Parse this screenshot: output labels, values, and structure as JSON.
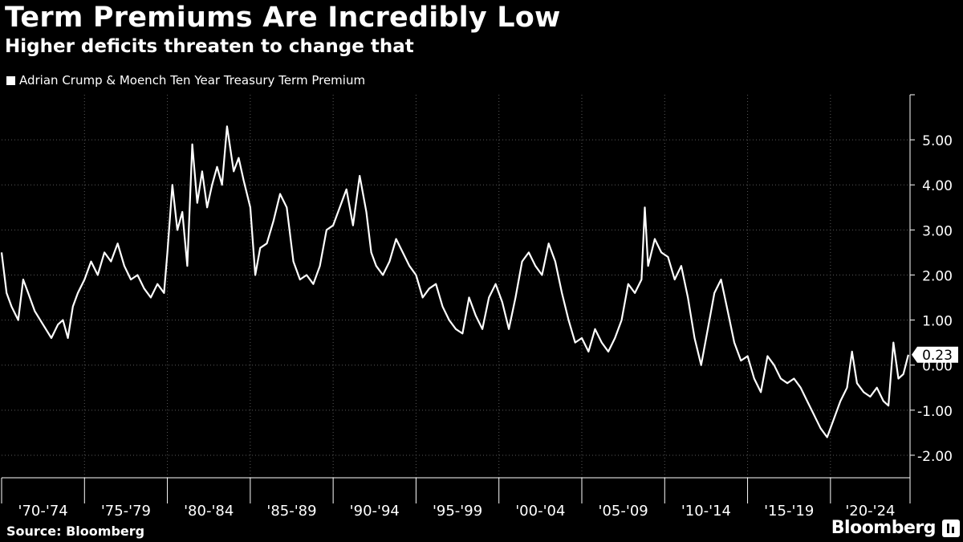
{
  "header": {
    "title": "Term Premiums Are Incredibly Low",
    "subtitle": "Higher deficits threaten to change that"
  },
  "footer": {
    "source": "Source: Bloomberg",
    "brand": "Bloomberg"
  },
  "colors": {
    "background": "#000000",
    "line": "#ffffff",
    "grid": "#5a5a5a"
  },
  "chart_data": {
    "type": "line",
    "title": "Term Premiums Are Incredibly Low",
    "subtitle": "Higher deficits threaten to change that",
    "legend": [
      "Adrian Crump & Moench Ten Year Treasury Term Premium"
    ],
    "legend_position": "top-left",
    "xlabel": "",
    "ylabel": "",
    "xlim": [
      1970,
      2024.8
    ],
    "ylim": [
      -2.5,
      6.0
    ],
    "y_ticks": [
      5.0,
      4.0,
      3.0,
      2.0,
      1.0,
      0.0,
      -1.0,
      -2.0
    ],
    "y_tick_labels": [
      "5.00",
      "4.00",
      "3.00",
      "2.00",
      "1.00",
      "0.00",
      "-1.00",
      "-2.00"
    ],
    "x_tick_labels": [
      "'70-'74",
      "'75-'79",
      "'80-'84",
      "'85-'89",
      "'90-'94",
      "'95-'99",
      "'00-'04",
      "'05-'09",
      "'10-'14",
      "'15-'19",
      "'20-'24"
    ],
    "x_grid_years": [
      1975,
      1980,
      1985,
      1990,
      1995,
      2000,
      2005,
      2010,
      2015,
      2020
    ],
    "grid": true,
    "last_value_label": "0.23",
    "series": [
      {
        "name": "Adrian Crump & Moench Ten Year Treasury Term Premium",
        "x": [
          1970.0,
          1970.3,
          1970.6,
          1971.0,
          1971.3,
          1971.6,
          1972.0,
          1972.5,
          1973.0,
          1973.4,
          1973.7,
          1974.0,
          1974.3,
          1974.6,
          1975.0,
          1975.4,
          1975.8,
          1976.2,
          1976.6,
          1977.0,
          1977.4,
          1977.8,
          1978.2,
          1978.6,
          1979.0,
          1979.4,
          1979.8,
          1980.0,
          1980.3,
          1980.6,
          1980.9,
          1981.2,
          1981.5,
          1981.8,
          1982.1,
          1982.4,
          1982.7,
          1983.0,
          1983.3,
          1983.6,
          1984.0,
          1984.3,
          1984.6,
          1985.0,
          1985.3,
          1985.6,
          1986.0,
          1986.4,
          1986.8,
          1987.2,
          1987.6,
          1988.0,
          1988.4,
          1988.8,
          1989.2,
          1989.6,
          1990.0,
          1990.4,
          1990.8,
          1991.2,
          1991.6,
          1992.0,
          1992.3,
          1992.6,
          1993.0,
          1993.4,
          1993.8,
          1994.2,
          1994.6,
          1995.0,
          1995.4,
          1995.8,
          1996.2,
          1996.6,
          1997.0,
          1997.4,
          1997.8,
          1998.2,
          1998.6,
          1999.0,
          1999.4,
          1999.8,
          2000.2,
          2000.6,
          2001.0,
          2001.4,
          2001.8,
          2002.2,
          2002.6,
          2003.0,
          2003.4,
          2003.8,
          2004.2,
          2004.6,
          2005.0,
          2005.4,
          2005.8,
          2006.2,
          2006.6,
          2007.0,
          2007.4,
          2007.8,
          2008.2,
          2008.6,
          2008.8,
          2009.0,
          2009.4,
          2009.8,
          2010.2,
          2010.6,
          2011.0,
          2011.4,
          2011.8,
          2012.2,
          2012.6,
          2013.0,
          2013.4,
          2013.8,
          2014.2,
          2014.6,
          2015.0,
          2015.4,
          2015.8,
          2016.2,
          2016.6,
          2017.0,
          2017.4,
          2017.8,
          2018.2,
          2018.6,
          2019.0,
          2019.4,
          2019.8,
          2020.2,
          2020.6,
          2021.0,
          2021.3,
          2021.6,
          2022.0,
          2022.4,
          2022.8,
          2023.2,
          2023.5,
          2023.8,
          2024.1,
          2024.4,
          2024.7
        ],
        "y": [
          2.5,
          1.6,
          1.3,
          1.0,
          1.9,
          1.6,
          1.2,
          0.9,
          0.6,
          0.9,
          1.0,
          0.6,
          1.3,
          1.6,
          1.9,
          2.3,
          2.0,
          2.5,
          2.3,
          2.7,
          2.2,
          1.9,
          2.0,
          1.7,
          1.5,
          1.8,
          1.6,
          2.5,
          4.0,
          3.0,
          3.4,
          2.2,
          4.9,
          3.6,
          4.3,
          3.5,
          4.0,
          4.4,
          4.0,
          5.3,
          4.3,
          4.6,
          4.1,
          3.5,
          2.0,
          2.6,
          2.7,
          3.2,
          3.8,
          3.5,
          2.3,
          1.9,
          2.0,
          1.8,
          2.2,
          3.0,
          3.1,
          3.5,
          3.9,
          3.1,
          4.2,
          3.4,
          2.5,
          2.2,
          2.0,
          2.3,
          2.8,
          2.5,
          2.2,
          2.0,
          1.5,
          1.7,
          1.8,
          1.3,
          1.0,
          0.8,
          0.7,
          1.5,
          1.1,
          0.8,
          1.5,
          1.8,
          1.4,
          0.8,
          1.5,
          2.3,
          2.5,
          2.2,
          2.0,
          2.7,
          2.3,
          1.6,
          1.0,
          0.5,
          0.6,
          0.3,
          0.8,
          0.5,
          0.3,
          0.6,
          1.0,
          1.8,
          1.6,
          1.9,
          3.5,
          2.2,
          2.8,
          2.5,
          2.4,
          1.9,
          2.2,
          1.5,
          0.6,
          0.0,
          0.8,
          1.6,
          1.9,
          1.2,
          0.5,
          0.1,
          0.2,
          -0.3,
          -0.6,
          0.2,
          0.0,
          -0.3,
          -0.4,
          -0.3,
          -0.5,
          -0.8,
          -1.1,
          -1.4,
          -1.6,
          -1.2,
          -0.8,
          -0.5,
          0.3,
          -0.4,
          -0.6,
          -0.7,
          -0.5,
          -0.8,
          -0.9,
          0.5,
          -0.3,
          -0.2,
          0.23
        ]
      }
    ]
  }
}
